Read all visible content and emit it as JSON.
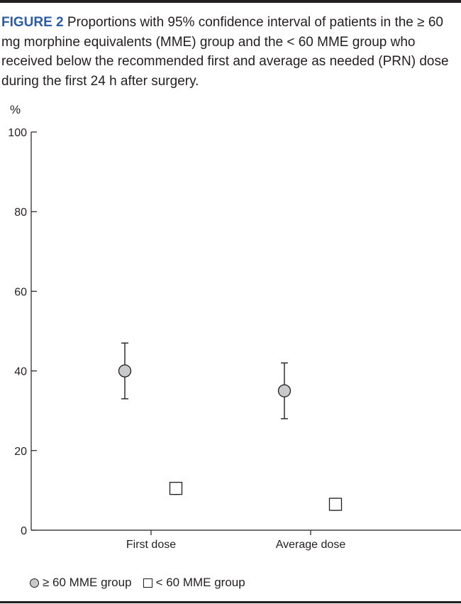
{
  "caption": {
    "label": "FIGURE 2",
    "text": " Proportions with 95% confidence interval of patients in the ≥ 60 mg morphine equivalents (MME) group and the < 60 MME group who received below the recommended first and average as needed (PRN) dose during the first 24 h after surgery."
  },
  "colors": {
    "label": "#2a5ca8",
    "ink": "#231f20",
    "circle_fill": "#c8c9cb"
  },
  "chart_data": {
    "type": "scatter",
    "categories": [
      "First dose",
      "Average dose"
    ],
    "ylabel": "%",
    "ylim": [
      0,
      100
    ],
    "yticks": [
      0,
      20,
      40,
      60,
      80,
      100
    ],
    "grid": false,
    "legend_position": "bottom-left",
    "series": [
      {
        "name": "≥ 60 MME group",
        "marker": "circle",
        "values": [
          40,
          35
        ],
        "ci_low": [
          33,
          28
        ],
        "ci_high": [
          47,
          42
        ]
      },
      {
        "name": "< 60 MME group",
        "marker": "square",
        "values": [
          10.5,
          6.5
        ],
        "ci_low": [
          9,
          5
        ],
        "ci_high": [
          12,
          8
        ]
      }
    ]
  }
}
